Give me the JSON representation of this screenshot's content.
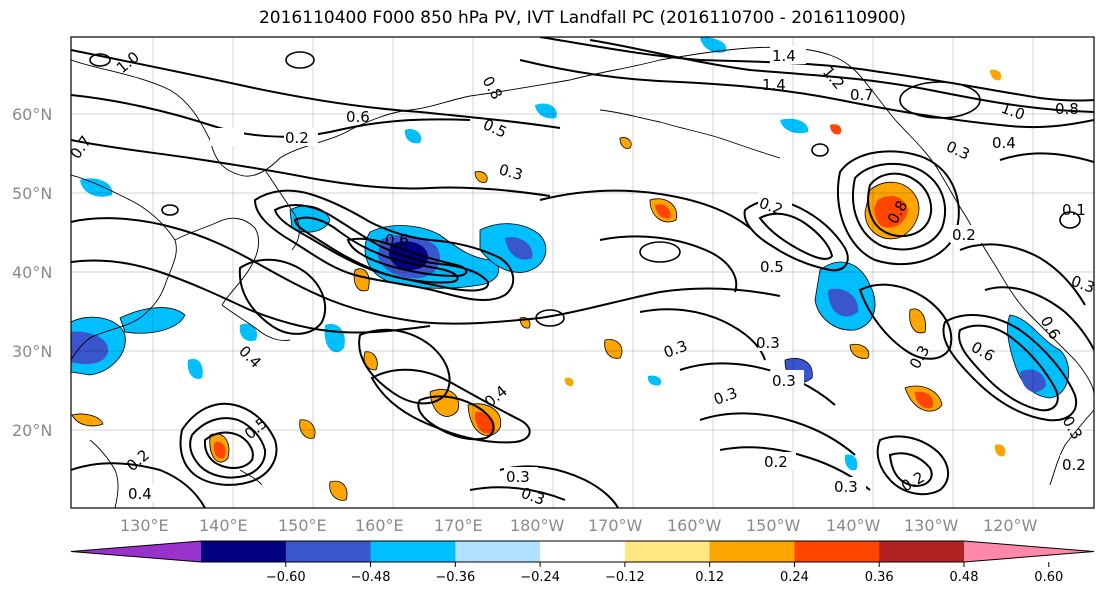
{
  "title": "2016110400 F000 850 hPa PV, IVT Landfall PC (2016110700 - 2016110900)",
  "lat_labels": [
    "60°N",
    "50°N",
    "40°N",
    "30°N",
    "20°N"
  ],
  "lon_labels": [
    "130°E",
    "140°E",
    "150°E",
    "160°E",
    "170°E",
    "180°W",
    "170°W",
    "160°W",
    "150°W",
    "140°W",
    "130°W",
    "120°W"
  ],
  "colorbar": {
    "colors": [
      "#9932cc",
      "#000080",
      "#3a56cc",
      "#00bfff",
      "#b0e0ff",
      "#ffffff",
      "#ffe680",
      "#ffa500",
      "#ff4500",
      "#b22222",
      "#ff88aa"
    ],
    "labels": [
      "−0.60",
      "−0.48",
      "−0.36",
      "−0.24",
      "−0.12",
      "0.12",
      "0.24",
      "0.36",
      "0.48",
      "0.60"
    ]
  },
  "contour_labels": [
    "1.0",
    "1.4",
    "1.4",
    "1.2",
    "0.8",
    "0.7",
    "1.0",
    "0.8",
    "0.2",
    "0.6",
    "0.5",
    "0.3",
    "0.3",
    "0.7",
    "0.4",
    "0.2",
    "0.1",
    "0.2",
    "0.6",
    "0.5",
    "0.8",
    "0.6",
    "0.4",
    "0.3",
    "0.3",
    "0.3",
    "0.3",
    "0.3",
    "0.6",
    "0.3",
    "0.3",
    "0.4",
    "0.5",
    "0.2",
    "0.4",
    "0.2",
    "0.3",
    "0.2",
    "0.3",
    "0.3",
    "0.2"
  ]
}
